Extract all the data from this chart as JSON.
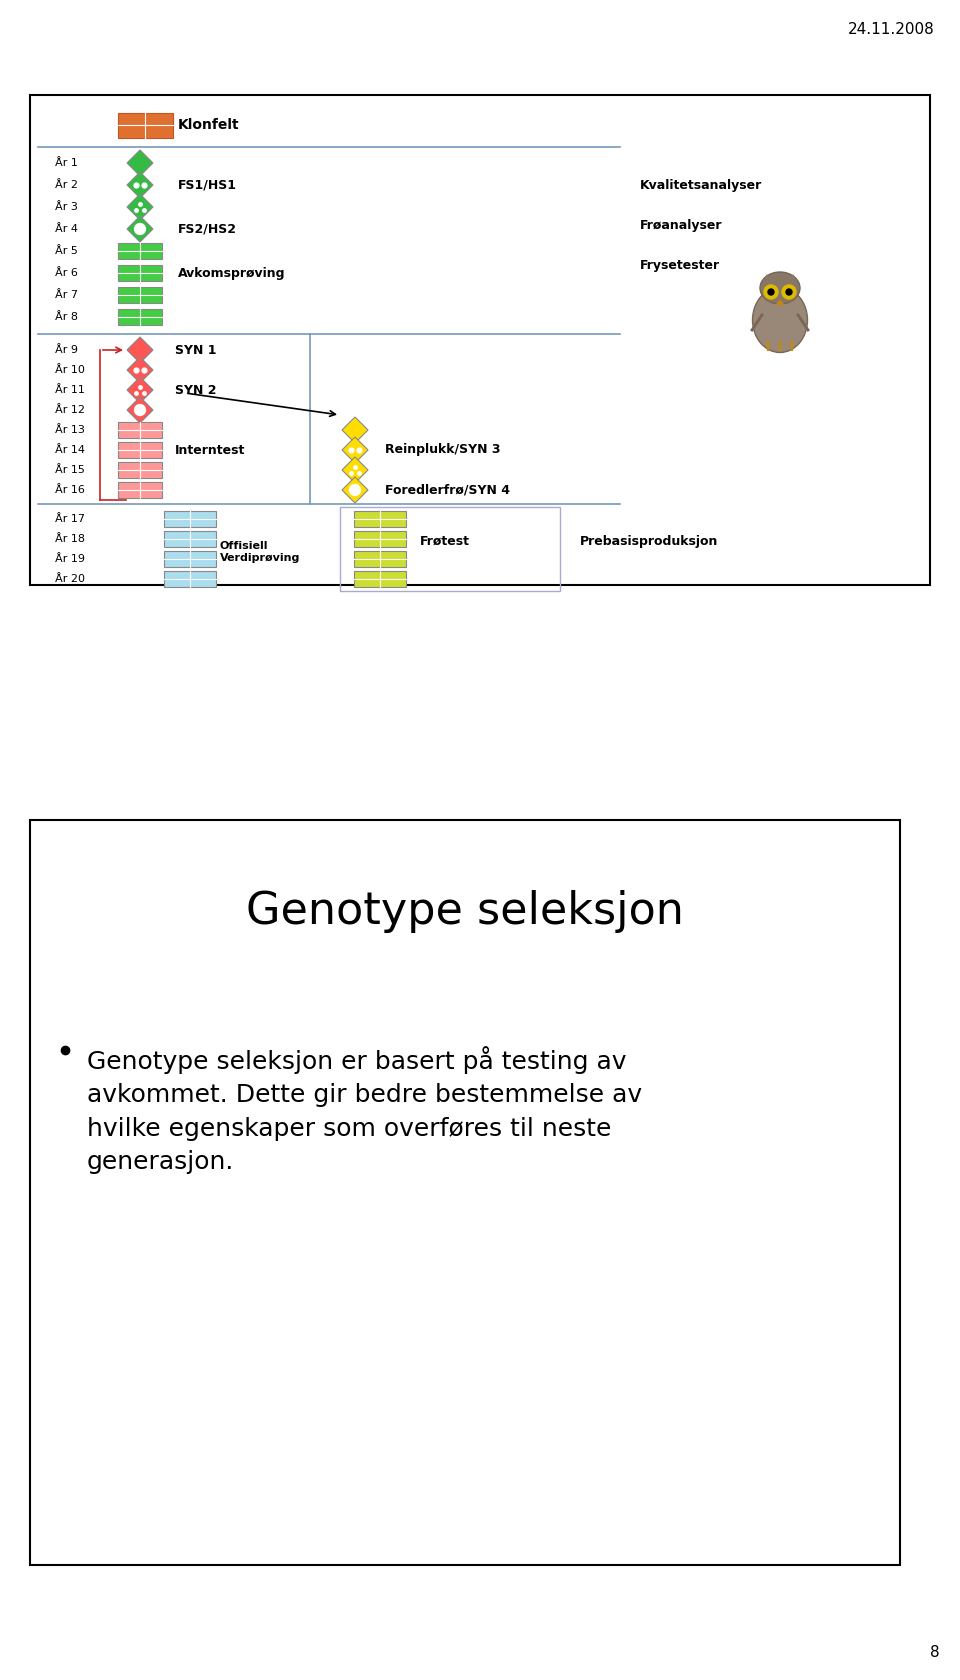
{
  "date_text": "24.11.2008",
  "page_number": "8",
  "slide1": {
    "title_klonfelt": "Klonfelt",
    "right_labels": [
      "Kvalitetsanalyser",
      "Frøanalyser",
      "Frysetester"
    ],
    "label_interntest": "Interntest",
    "label_syn1": "SYN 1",
    "label_syn2": "SYN 2",
    "label_fs1": "FS1/HS1",
    "label_fs2": "FS2/HS2",
    "label_avkom": "Avkomsprøving",
    "label_reinplukk": "Reinplukk/SYN 3",
    "label_foredler": "Foredlerfrø/SYN 4",
    "label_offisiell": "Offisiell\nVerdiprøving",
    "label_frotest": "Frøtest",
    "label_prebasis": "Prebasisproduksjon"
  },
  "slide2": {
    "title": "Genotype seleksjon",
    "bullet_text": "Genotype seleksjon er basert på testing av\navkommet. Dette gir bedre bestemmelse av\nhvilke egenskaper som overføres til neste\ngenerasjon."
  }
}
